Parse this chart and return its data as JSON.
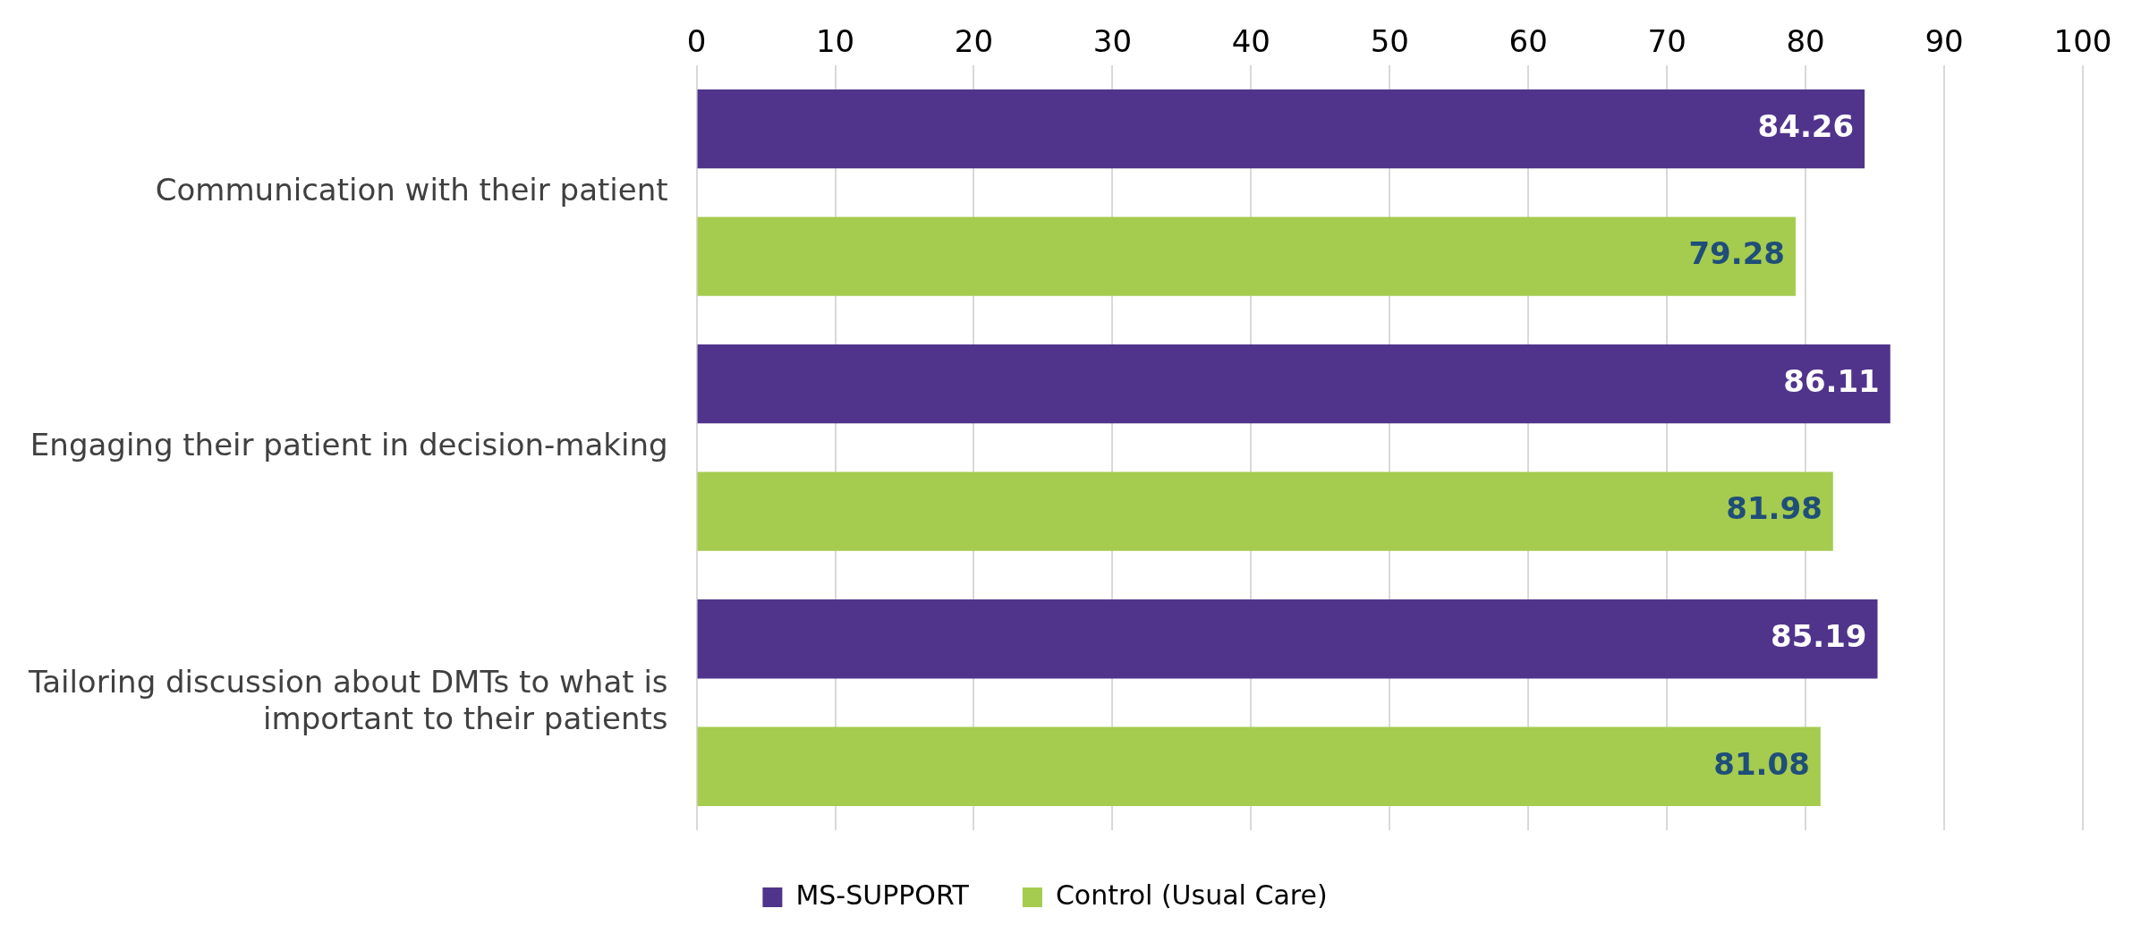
{
  "chart_data": {
    "type": "bar",
    "orientation": "horizontal",
    "categories": [
      "Communication with their patient",
      "Engaging their patient in decision-making",
      "Tailoring discussion about DMTs to what is important to their patients"
    ],
    "series": [
      {
        "name": "MS-SUPPORT",
        "color": "#50348c",
        "values": [
          84.26,
          86.11,
          85.19
        ]
      },
      {
        "name": "Control (Usual Care)",
        "color": "#a5cb4f",
        "values": [
          79.28,
          81.98,
          81.08
        ]
      }
    ],
    "xlim": [
      0,
      100
    ],
    "xticks": [
      0,
      10,
      20,
      30,
      40,
      50,
      60,
      70,
      80,
      90,
      100
    ],
    "grid": "x",
    "legend": "bottom",
    "data_labels": true
  }
}
